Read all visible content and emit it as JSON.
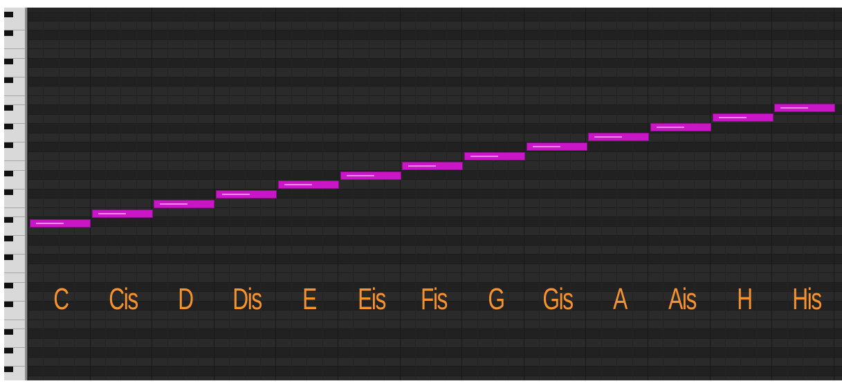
{
  "window": {
    "type": "piano-roll editor"
  },
  "keyboard": {
    "icon": "piano-keyboard"
  },
  "notes": [
    {
      "name": "C"
    },
    {
      "name": "Cis"
    },
    {
      "name": "D"
    },
    {
      "name": "Dis"
    },
    {
      "name": "E"
    },
    {
      "name": "Eis"
    },
    {
      "name": "Fis"
    },
    {
      "name": "G"
    },
    {
      "name": "Gis"
    },
    {
      "name": "A"
    },
    {
      "name": "Ais"
    },
    {
      "name": "H"
    },
    {
      "name": "His"
    }
  ],
  "colors": {
    "grid_background": "#252525",
    "note_fill": "#c916c6",
    "label_color": "#f7932f"
  }
}
